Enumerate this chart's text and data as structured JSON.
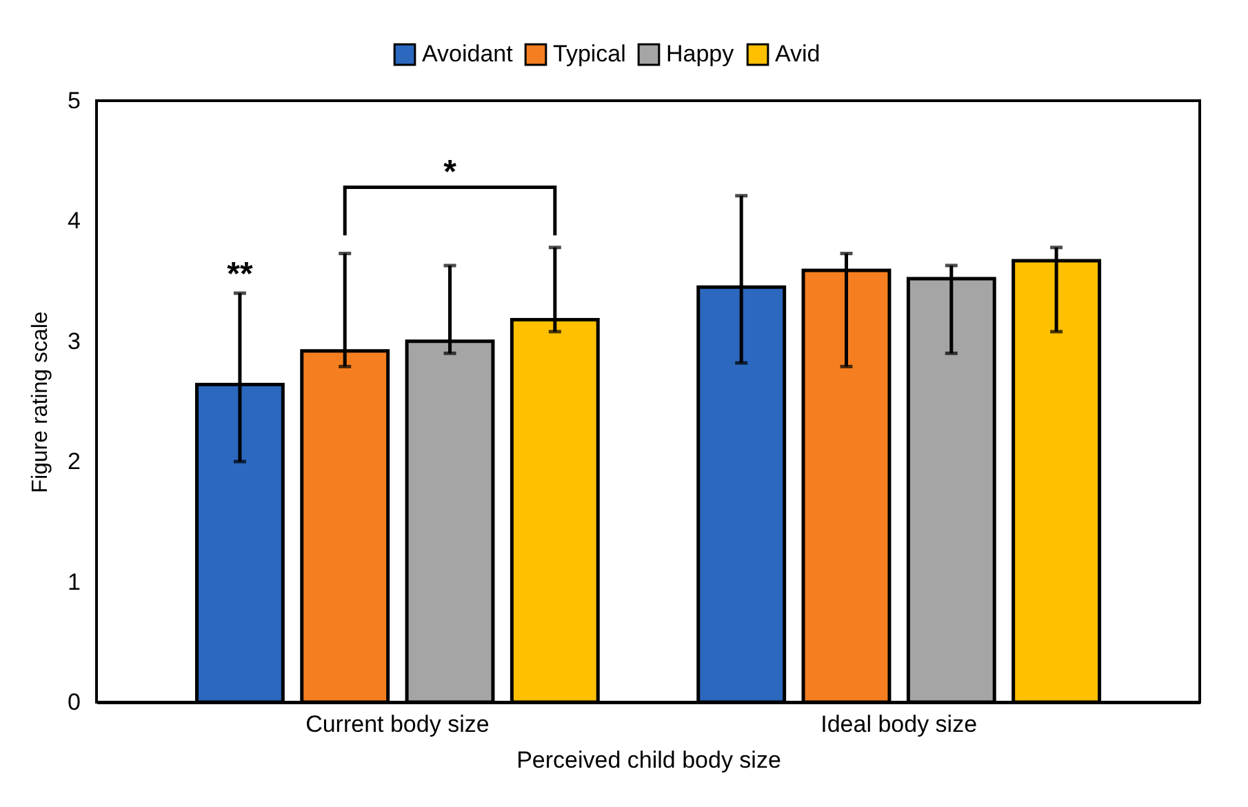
{
  "chart_data": {
    "type": "bar",
    "xlabel": "Perceived child body size",
    "ylabel": "Figure rating scale",
    "categories": [
      "Current body size",
      "Ideal body size"
    ],
    "series": [
      {
        "name": "Avoidant",
        "color": "#2b68be",
        "values": [
          2.64,
          3.45
        ],
        "errors": [
          [
            2.0,
            3.4
          ],
          [
            2.82,
            4.21
          ]
        ]
      },
      {
        "name": "Typical",
        "color": "#f57f20",
        "values": [
          2.92,
          3.59
        ],
        "errors": [
          [
            2.79,
            3.73
          ],
          [
            2.79,
            3.73
          ]
        ]
      },
      {
        "name": "Happy",
        "color": "#a5a5a5",
        "values": [
          3.0,
          3.52
        ],
        "errors": [
          [
            2.9,
            3.63
          ],
          [
            2.9,
            3.63
          ]
        ]
      },
      {
        "name": "Avid",
        "color": "#ffc000",
        "values": [
          3.18,
          3.67
        ],
        "errors": [
          [
            3.08,
            3.78
          ],
          [
            3.08,
            3.78
          ]
        ]
      }
    ],
    "ylim": [
      0,
      5
    ],
    "yticks": [
      0,
      1,
      2,
      3,
      4,
      5
    ],
    "grid": false,
    "legend": "top",
    "annotations": [
      "**",
      "*"
    ]
  }
}
